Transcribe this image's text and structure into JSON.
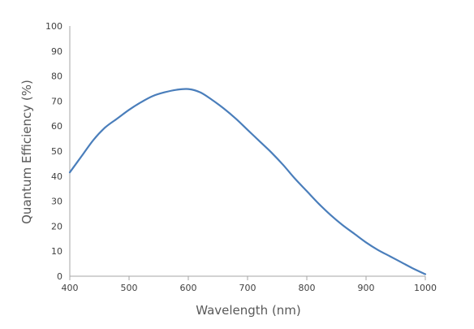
{
  "chart_data": {
    "type": "line",
    "xlabel": "Wavelength (nm)",
    "ylabel": "Quantum Efficiency (%)",
    "xlim": [
      400,
      1000
    ],
    "ylim": [
      0,
      100
    ],
    "x_ticks": [
      400,
      500,
      600,
      700,
      800,
      900,
      1000
    ],
    "y_ticks": [
      0,
      10,
      20,
      30,
      40,
      50,
      60,
      70,
      80,
      90,
      100
    ],
    "grid": false,
    "legend": "none",
    "series_color": "#4a7ebb",
    "series": [
      {
        "x": [
          400,
          420,
          440,
          460,
          480,
          500,
          520,
          540,
          560,
          580,
          600,
          620,
          640,
          660,
          680,
          700,
          720,
          740,
          760,
          780,
          800,
          820,
          840,
          860,
          880,
          900,
          920,
          940,
          960,
          980,
          1000
        ],
        "values": [
          41.5,
          48,
          54.5,
          59.5,
          63,
          66.5,
          69.5,
          72,
          73.5,
          74.5,
          74.8,
          73.5,
          70.5,
          67,
          63,
          58.5,
          54,
          49.5,
          44.5,
          39,
          34,
          29,
          24.5,
          20.5,
          17,
          13.5,
          10.5,
          8,
          5.5,
          3,
          0.8
        ]
      }
    ]
  }
}
